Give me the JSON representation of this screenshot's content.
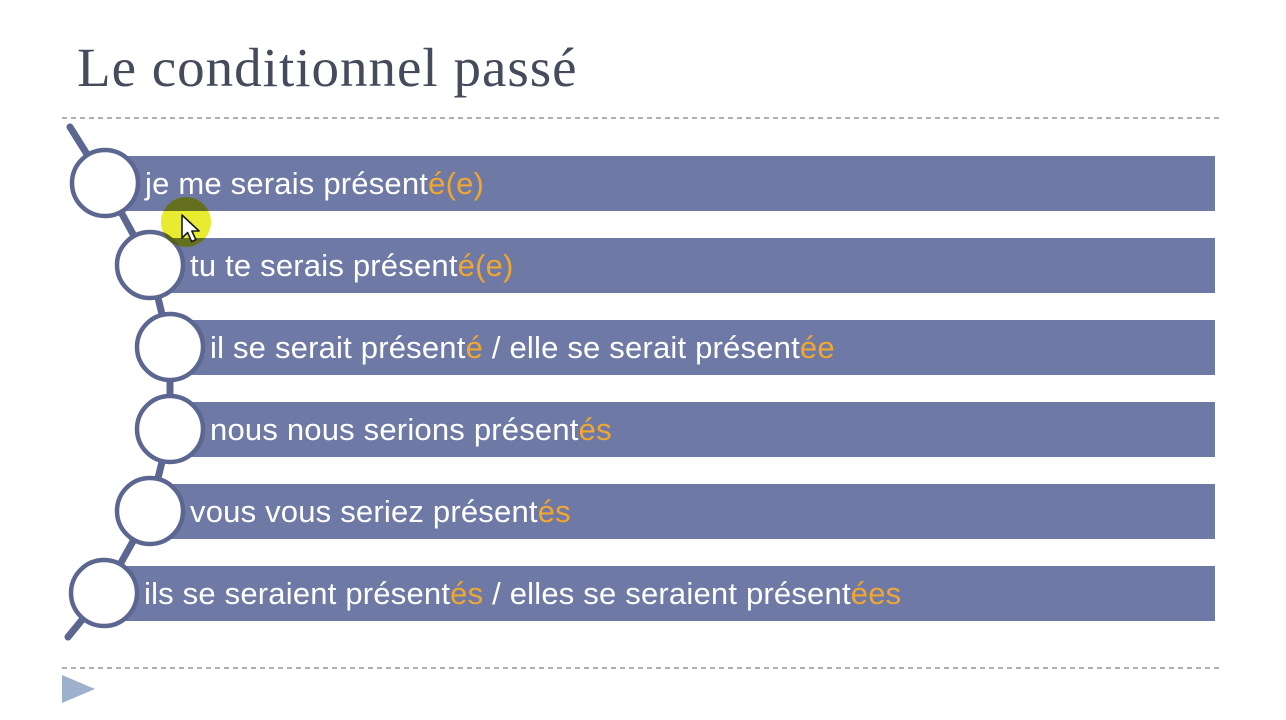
{
  "slide": {
    "title": "Le conditionnel passé",
    "rows": [
      {
        "segments": [
          {
            "text": "je me serais présent",
            "highlight": false
          },
          {
            "text": "é(e)",
            "highlight": true
          }
        ]
      },
      {
        "segments": [
          {
            "text": "tu te serais présent",
            "highlight": false
          },
          {
            "text": "é(e)",
            "highlight": true
          }
        ]
      },
      {
        "segments": [
          {
            "text": "il se serait présent",
            "highlight": false
          },
          {
            "text": "é",
            "highlight": true
          },
          {
            "text": " / elle se serait présent",
            "highlight": false
          },
          {
            "text": "ée",
            "highlight": true
          }
        ]
      },
      {
        "segments": [
          {
            "text": "nous nous serions présent",
            "highlight": false
          },
          {
            "text": "és",
            "highlight": true
          }
        ]
      },
      {
        "segments": [
          {
            "text": "vous vous seriez présent",
            "highlight": false
          },
          {
            "text": "és",
            "highlight": true
          }
        ]
      },
      {
        "segments": [
          {
            "text": "ils se seraient présent",
            "highlight": false
          },
          {
            "text": "és",
            "highlight": true
          },
          {
            "text": " / elles se seraient présent",
            "highlight": false
          },
          {
            "text": "ées",
            "highlight": true
          }
        ]
      }
    ],
    "icons": {
      "cursor": "arrow-pointer-icon",
      "footer": "play-triangle-icon",
      "nodes": "chain-circle-icon"
    },
    "colors": {
      "bar_fill": "#6E7AA5",
      "row_text": "#FFFFFF",
      "ending_text": "#F0A630",
      "chain_stroke": "#5C6791",
      "title_text": "#454B5C",
      "divider": "#B0B0B0",
      "play_arrow": "#9DB0CC",
      "cursor_halo": "#E8EA1E"
    }
  }
}
